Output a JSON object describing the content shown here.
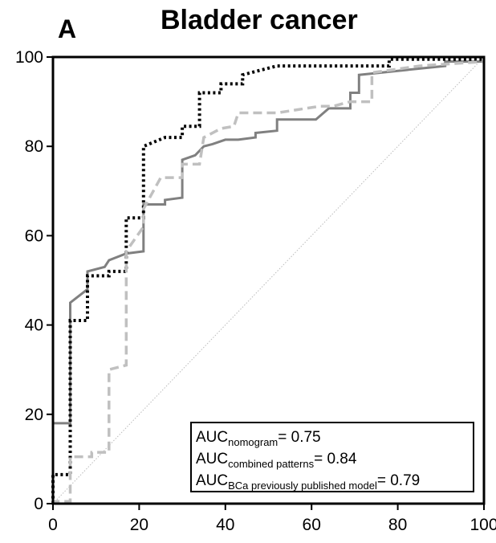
{
  "panel_label": "A",
  "chart_data": {
    "type": "line",
    "title": "Bladder cancer",
    "xlabel": "",
    "ylabel": "",
    "xlim": [
      0,
      100
    ],
    "ylim": [
      0,
      100
    ],
    "x_ticks": [
      0,
      20,
      40,
      60,
      80,
      100
    ],
    "y_ticks": [
      0,
      20,
      40,
      60,
      80,
      100
    ],
    "grid": false,
    "legend_placement": "bottom-right",
    "legend": [
      {
        "prefix": "AUC",
        "subscript": "nomogram",
        "suffix": "= 0.75"
      },
      {
        "prefix": "AUC",
        "subscript": "combined patterns",
        "suffix": "= 0.84"
      },
      {
        "prefix": "AUC",
        "subscript": "BCa previously published model",
        "suffix": "= 0.79"
      }
    ],
    "reference_line": {
      "x": [
        0,
        100
      ],
      "y": [
        0,
        100
      ],
      "color": "#bbbbbb",
      "style": "dotted"
    },
    "series": [
      {
        "key": "nomogram",
        "color": "#808080",
        "style": "solid",
        "points": [
          [
            0,
            0
          ],
          [
            0,
            18
          ],
          [
            4,
            18
          ],
          [
            4,
            45
          ],
          [
            8,
            48
          ],
          [
            8,
            52
          ],
          [
            12,
            53
          ],
          [
            13,
            54.5
          ],
          [
            17,
            56
          ],
          [
            21,
            56.5
          ],
          [
            21,
            67
          ],
          [
            26,
            67
          ],
          [
            26,
            68
          ],
          [
            30,
            68.5
          ],
          [
            30,
            77
          ],
          [
            33,
            78
          ],
          [
            35,
            80
          ],
          [
            37,
            80.5
          ],
          [
            40,
            81.5
          ],
          [
            43,
            81.5
          ],
          [
            47,
            82
          ],
          [
            47,
            83
          ],
          [
            52,
            83.5
          ],
          [
            52,
            86
          ],
          [
            61,
            86
          ],
          [
            64,
            88.5
          ],
          [
            69,
            88.5
          ],
          [
            69,
            92
          ],
          [
            71,
            92
          ],
          [
            71,
            96
          ],
          [
            91,
            98
          ],
          [
            91,
            99
          ],
          [
            100,
            99
          ]
        ]
      },
      {
        "key": "combined_patterns",
        "color": "#000000",
        "style": "dotted",
        "points": [
          [
            0,
            0
          ],
          [
            0,
            6.5
          ],
          [
            4,
            6.5
          ],
          [
            4,
            41
          ],
          [
            8,
            41
          ],
          [
            8,
            51
          ],
          [
            13,
            51
          ],
          [
            13,
            52
          ],
          [
            17,
            52
          ],
          [
            17,
            64
          ],
          [
            21,
            64
          ],
          [
            21,
            80
          ],
          [
            26,
            82
          ],
          [
            30,
            82
          ],
          [
            30,
            84.5
          ],
          [
            34,
            84.5
          ],
          [
            34,
            92
          ],
          [
            39,
            92
          ],
          [
            39,
            94
          ],
          [
            44,
            94
          ],
          [
            44,
            96
          ],
          [
            52,
            98
          ],
          [
            78,
            98
          ],
          [
            78,
            99.5
          ],
          [
            100,
            99.5
          ]
        ]
      },
      {
        "key": "bca_previously_published_model",
        "color": "#c0c0c0",
        "style": "dashed",
        "points": [
          [
            0,
            0
          ],
          [
            0,
            0.5
          ],
          [
            4,
            0.5
          ],
          [
            4,
            10.5
          ],
          [
            9,
            10.5
          ],
          [
            9,
            11.5
          ],
          [
            13,
            11.5
          ],
          [
            13,
            30
          ],
          [
            17,
            31
          ],
          [
            17,
            56.5
          ],
          [
            21,
            62
          ],
          [
            21,
            66
          ],
          [
            25,
            73
          ],
          [
            30,
            73
          ],
          [
            30,
            76
          ],
          [
            34,
            76
          ],
          [
            35,
            82
          ],
          [
            39,
            84
          ],
          [
            42,
            84.5
          ],
          [
            43,
            87.5
          ],
          [
            47,
            87.5
          ],
          [
            52,
            87.5
          ],
          [
            62,
            89
          ],
          [
            65,
            89
          ],
          [
            69,
            90
          ],
          [
            74,
            90
          ],
          [
            74,
            96.5
          ],
          [
            85,
            98
          ],
          [
            100,
            99
          ]
        ]
      }
    ]
  }
}
